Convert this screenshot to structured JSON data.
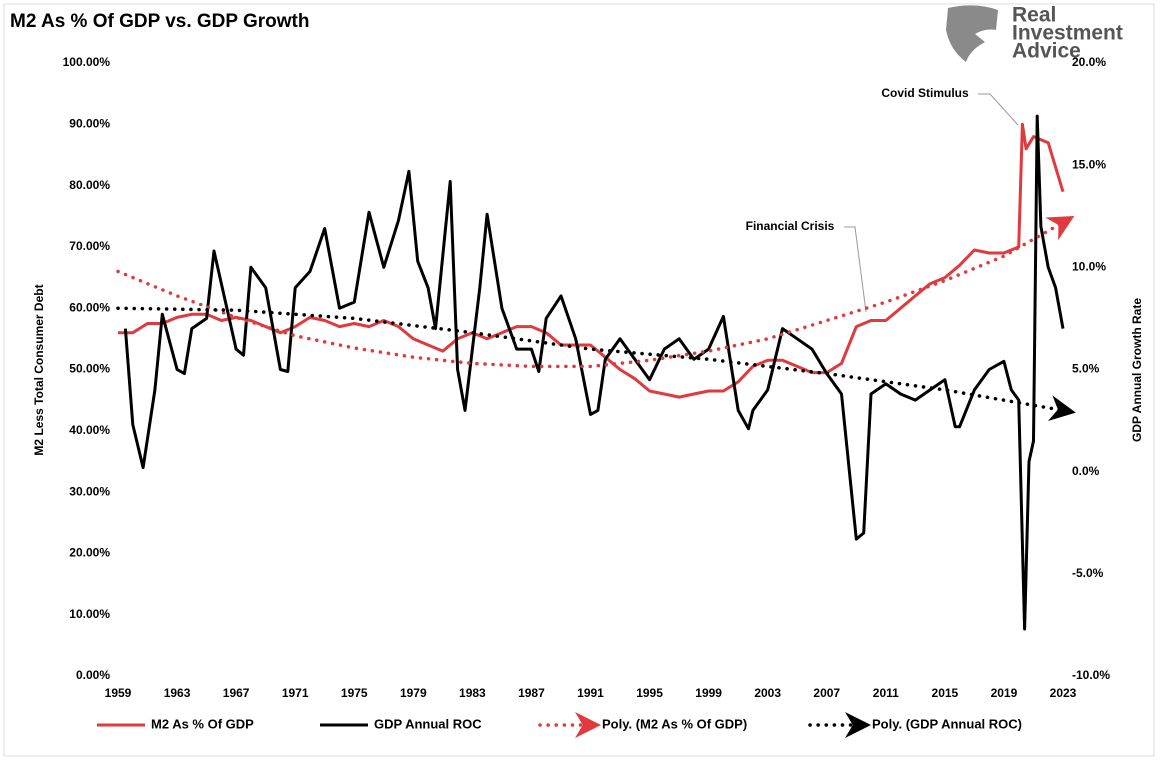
{
  "chart_data": {
    "type": "line",
    "title": "M2 As % Of GDP vs. GDP Growth",
    "brand": [
      "Real",
      "Investment",
      "Advice"
    ],
    "y_label": "M2 Less Total Consumer Debt",
    "y2_label": "GDP Annual Growth Rate",
    "annotations": [
      "Covid Stimulus",
      "Financial Crisis"
    ],
    "xlim": [
      1959,
      2023
    ],
    "xticks": [
      1959,
      1963,
      1967,
      1971,
      1975,
      1979,
      1983,
      1987,
      1991,
      1995,
      1999,
      2003,
      2007,
      2011,
      2015,
      2019,
      2023
    ],
    "ylim": [
      0,
      100
    ],
    "yticks": [
      {
        "value": 0,
        "label": "0.00%"
      },
      {
        "value": 10,
        "label": "10.00%"
      },
      {
        "value": 20,
        "label": "20.00%"
      },
      {
        "value": 30,
        "label": "30.00%"
      },
      {
        "value": 40,
        "label": "40.00%"
      },
      {
        "value": 50,
        "label": "50.00%"
      },
      {
        "value": 60,
        "label": "60.00%"
      },
      {
        "value": 70,
        "label": "70.00%"
      },
      {
        "value": 80,
        "label": "80.00%"
      },
      {
        "value": 90,
        "label": "90.00%"
      },
      {
        "value": 100,
        "label": "100.00%"
      }
    ],
    "y2lim": [
      -10,
      20
    ],
    "y2ticks": [
      {
        "value": -10,
        "label": "-10.0%"
      },
      {
        "value": -5,
        "label": "-5.0%"
      },
      {
        "value": 0,
        "label": "0.0%"
      },
      {
        "value": 5,
        "label": "5.0%"
      },
      {
        "value": 10,
        "label": "10.0%"
      },
      {
        "value": 15,
        "label": "15.0%"
      },
      {
        "value": 20,
        "label": "20.0%"
      }
    ],
    "legend": "bottom",
    "series": [
      {
        "name": "M2 As % Of GDP",
        "color": "#e0393e",
        "line_style": "solid",
        "x": [
          1959,
          1960,
          1961,
          1962,
          1963,
          1964,
          1965,
          1966,
          1967,
          1968,
          1969,
          1970,
          1971,
          1972,
          1973,
          1974,
          1975,
          1976,
          1977,
          1978,
          1979,
          1980,
          1981,
          1982,
          1983,
          1984,
          1985,
          1986,
          1987,
          1988,
          1989,
          1990,
          1991,
          1992,
          1993,
          1994,
          1995,
          1996,
          1997,
          1998,
          1999,
          2000,
          2001,
          2002,
          2003,
          2004,
          2005,
          2006,
          2007,
          2008,
          2009,
          2010,
          2011,
          2012,
          2013,
          2014,
          2015,
          2016,
          2017,
          2018,
          2019,
          2020,
          2020.25,
          2020.5,
          2021,
          2022,
          2023
        ],
        "values": [
          56,
          56,
          57.5,
          57.5,
          58.5,
          59,
          59,
          58,
          58.5,
          58,
          57,
          56,
          57,
          58.5,
          58,
          57,
          57.5,
          57,
          58,
          57,
          55,
          54,
          53,
          55,
          56,
          55,
          56,
          57,
          57,
          56,
          54,
          54,
          54,
          52,
          50,
          48.5,
          46.5,
          46,
          45.5,
          46,
          46.5,
          46.5,
          48,
          50.5,
          51.5,
          51.5,
          50.5,
          49.5,
          49.5,
          51,
          57,
          58,
          58,
          60,
          62,
          64,
          65,
          67,
          69.5,
          69,
          69,
          70,
          90,
          86,
          88,
          87,
          79
        ]
      },
      {
        "name": "GDP Annual ROC",
        "color": "#000000",
        "line_style": "solid",
        "axis": "y2",
        "x": [
          1959.5,
          1960,
          1960.7,
          1961.5,
          1962,
          1963,
          1963.5,
          1964,
          1965,
          1965.5,
          1967,
          1967.5,
          1968,
          1969,
          1970,
          1970.5,
          1971,
          1972,
          1973,
          1974,
          1975,
          1976,
          1977,
          1978,
          1978.7,
          1979.3,
          1980,
          1980.5,
          1981.5,
          1982,
          1982.5,
          1983.5,
          1984,
          1985,
          1986,
          1987,
          1987.5,
          1988,
          1989,
          1990,
          1991,
          1991.5,
          1992,
          1993,
          1994,
          1995,
          1996,
          1997,
          1998,
          1999,
          2000,
          2001,
          2001.7,
          2002,
          2003,
          2004,
          2005,
          2006,
          2007,
          2008,
          2009,
          2009.5,
          2010,
          2011,
          2012,
          2013,
          2014,
          2015,
          2015.7,
          2016,
          2017,
          2018,
          2019,
          2019.5,
          2020,
          2020.4,
          2020.7,
          2021,
          2021.25,
          2021.5,
          2022,
          2022.5,
          2023
        ],
        "values": [
          7,
          2.3,
          0.2,
          4,
          7.7,
          5,
          4.8,
          7,
          7.5,
          10.8,
          6,
          5.7,
          10,
          9,
          5,
          4.9,
          9,
          9.8,
          11.9,
          8,
          8.3,
          12.7,
          10,
          12.3,
          14.7,
          10.3,
          9,
          7,
          14.2,
          5,
          3,
          9,
          12.6,
          8,
          6,
          6,
          4.9,
          7.5,
          8.6,
          6.5,
          2.8,
          3,
          5.5,
          6.5,
          5.5,
          4.5,
          6,
          6.5,
          5.5,
          6,
          7.6,
          3,
          2.1,
          3,
          4,
          7,
          6.5,
          6,
          4.8,
          3.8,
          -3.3,
          -3,
          3.8,
          4.3,
          3.8,
          3.5,
          4,
          4.5,
          2.2,
          2.2,
          4,
          5,
          5.4,
          4,
          3.5,
          -7.7,
          0.5,
          1.5,
          17.4,
          12,
          10,
          9,
          7
        ]
      },
      {
        "name": "Poly. (M2 As % Of GDP)",
        "color": "#e0393e",
        "line_style": "dotted",
        "x": [
          1959,
          1963,
          1967,
          1971,
          1975,
          1979,
          1983,
          1987,
          1991,
          1995,
          1999,
          2003,
          2007,
          2011,
          2015,
          2019,
          2023
        ],
        "values": [
          66,
          62,
          58.5,
          55.5,
          53.5,
          52,
          51,
          50.5,
          50.5,
          51.5,
          53,
          55,
          58,
          61,
          64.5,
          68.5,
          74
        ]
      },
      {
        "name": "Poly. (GDP Annual ROC)",
        "color": "#000000",
        "line_style": "dotted",
        "axis": "y2",
        "x": [
          1959,
          1967,
          1975,
          1983,
          1991,
          1999,
          2007,
          2015,
          2023
        ],
        "values": [
          8,
          7.9,
          7.5,
          6.8,
          6,
          5.5,
          4.8,
          4,
          3
        ]
      }
    ]
  }
}
